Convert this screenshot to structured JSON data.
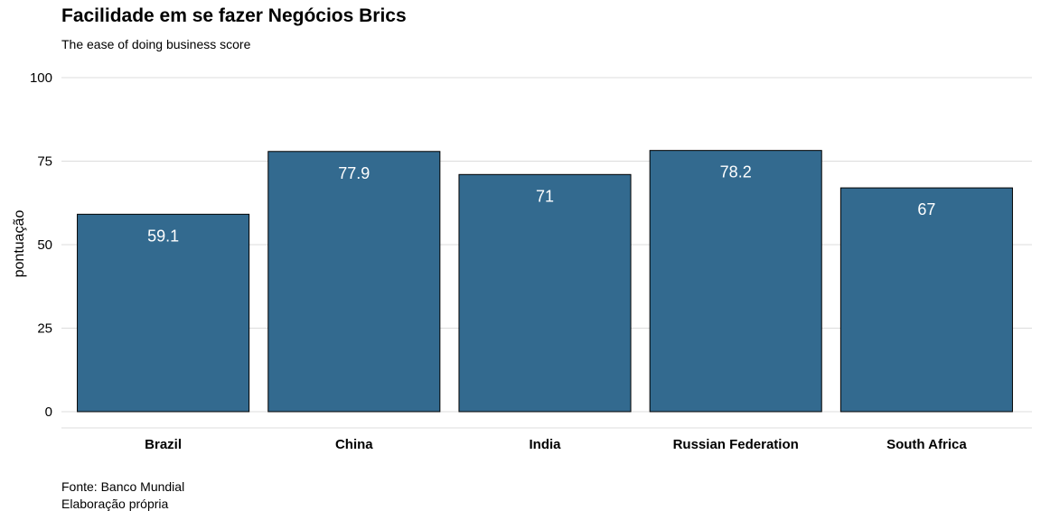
{
  "chart_data": {
    "type": "bar",
    "title": "Facilidade em se fazer Negócios Brics",
    "subtitle": "The ease of doing business score",
    "xlabel": "",
    "ylabel": "pontuação",
    "categories": [
      "Brazil",
      "China",
      "India",
      "Russian Federation",
      "South Africa"
    ],
    "values": [
      59.1,
      77.9,
      71,
      78.2,
      67
    ],
    "data_labels": [
      "59.1",
      "77.9",
      "71",
      "78.2",
      "67"
    ],
    "ylim": [
      0,
      100
    ],
    "yticks": [
      0,
      25,
      50,
      75,
      100
    ],
    "grid": true,
    "legend": "none",
    "bar_color": "#336a8f",
    "bar_outline": "#000000",
    "label_color": "#ffffff",
    "caption": [
      "Fonte: Banco Mundial",
      "Elaboração própria"
    ]
  }
}
